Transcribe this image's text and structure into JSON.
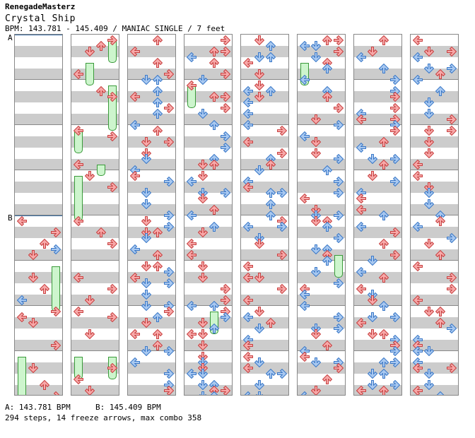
{
  "author": "RenegadeMasterz",
  "song_title": "Crystal Ship",
  "bpm_info": "BPM: 143.781 - 145.409 / MANIAC SINGLE / 7 feet",
  "bpm_markers": {
    "a": "A",
    "b": "B"
  },
  "bpm_legend": {
    "a": "A: 143.781 BPM",
    "b": "B: 145.409 BPM"
  },
  "stats": "294 steps, 14 freeze arrows, max combo 358",
  "colors": {
    "red_note": "#f7a8a8",
    "red_stroke": "#c84040",
    "blue_note": "#a8c8f0",
    "blue_stroke": "#3a78c8",
    "freeze_fill": "#cdf5cd",
    "freeze_stroke": "#3a9a3a",
    "bpm_line": "#3a6ea5"
  },
  "chart_data": {
    "type": "step-chart",
    "mode": "MANIAC SINGLE",
    "difficulty_feet": 7,
    "lanes": [
      "left",
      "down",
      "up",
      "right"
    ],
    "columns": 8,
    "beats_per_column": 16,
    "total_steps": 294,
    "freeze_arrows": 14,
    "max_combo": 358,
    "bpm_changes": [
      {
        "label": "A",
        "bpm": 143.781,
        "column": 1,
        "beat": 0
      },
      {
        "label": "B",
        "bpm": 145.409,
        "column": 1,
        "beat": 8
      }
    ],
    "notes": [
      {
        "col": 1,
        "beat": 8,
        "lane": "left",
        "color": "red"
      },
      {
        "col": 1,
        "beat": 8.5,
        "lane": "right",
        "color": "red"
      },
      {
        "col": 1,
        "beat": 9,
        "lane": "up",
        "color": "red"
      },
      {
        "col": 1,
        "beat": 9.25,
        "lane": "right",
        "color": "blue"
      },
      {
        "col": 1,
        "beat": 9.5,
        "lane": "down",
        "color": "red"
      },
      {
        "col": 1,
        "beat": 10.5,
        "lane": "down",
        "color": "red"
      },
      {
        "col": 1,
        "beat": 11,
        "lane": "up",
        "color": "red"
      },
      {
        "col": 1,
        "beat": 11.5,
        "lane": "left",
        "color": "blue"
      },
      {
        "col": 1,
        "beat": 12,
        "lane": "right",
        "color": "red"
      },
      {
        "col": 1,
        "beat": 12.25,
        "lane": "left",
        "color": "red"
      },
      {
        "col": 1,
        "beat": 12.5,
        "lane": "down",
        "color": "red"
      },
      {
        "col": 1,
        "beat": 13.5,
        "lane": "right",
        "color": "red"
      },
      {
        "col": 1,
        "beat": 14.5,
        "lane": "down",
        "color": "red"
      },
      {
        "col": 1,
        "beat": 15.25,
        "lane": "up",
        "color": "red"
      },
      {
        "col": 1,
        "beat": 15.75,
        "lane": "right",
        "color": "red"
      },
      {
        "col": 2,
        "beat": 0,
        "lane": "right",
        "color": "red"
      },
      {
        "col": 2,
        "beat": 0.25,
        "lane": "up",
        "color": "red"
      },
      {
        "col": 2,
        "beat": 0.5,
        "lane": "down",
        "color": "red"
      },
      {
        "col": 2,
        "beat": 1.5,
        "lane": "left",
        "color": "red"
      },
      {
        "col": 2,
        "beat": 2.25,
        "lane": "up",
        "color": "red"
      },
      {
        "col": 2,
        "beat": 2.5,
        "lane": "right",
        "color": "red"
      },
      {
        "col": 2,
        "beat": 4,
        "lane": "left",
        "color": "red"
      },
      {
        "col": 2,
        "beat": 4.25,
        "lane": "right",
        "color": "red"
      },
      {
        "col": 2,
        "beat": 5.5,
        "lane": "left",
        "color": "red"
      },
      {
        "col": 2,
        "beat": 6,
        "lane": "down",
        "color": "red"
      },
      {
        "col": 2,
        "beat": 6.5,
        "lane": "right",
        "color": "red"
      },
      {
        "col": 2,
        "beat": 8,
        "lane": "left",
        "color": "red"
      },
      {
        "col": 2,
        "beat": 8.5,
        "lane": "up",
        "color": "red"
      },
      {
        "col": 2,
        "beat": 9,
        "lane": "right",
        "color": "red"
      },
      {
        "col": 2,
        "beat": 10.5,
        "lane": "left",
        "color": "red"
      },
      {
        "col": 2,
        "beat": 11,
        "lane": "right",
        "color": "red"
      },
      {
        "col": 2,
        "beat": 11.5,
        "lane": "down",
        "color": "red"
      },
      {
        "col": 2,
        "beat": 12,
        "lane": "left",
        "color": "red"
      },
      {
        "col": 2,
        "beat": 12.25,
        "lane": "right",
        "color": "red"
      },
      {
        "col": 2,
        "beat": 13,
        "lane": "down",
        "color": "red"
      },
      {
        "col": 2,
        "beat": 14.5,
        "lane": "right",
        "color": "red"
      },
      {
        "col": 2,
        "beat": 15,
        "lane": "left",
        "color": "red"
      },
      {
        "col": 2,
        "beat": 15.5,
        "lane": "down",
        "color": "red"
      }
    ],
    "freezes": [
      {
        "col": 2,
        "lane": "right",
        "start_beat": 0,
        "end_beat": 1
      },
      {
        "col": 2,
        "lane": "down",
        "start_beat": 1,
        "end_beat": 2
      },
      {
        "col": 2,
        "lane": "right",
        "start_beat": 2,
        "end_beat": 4
      },
      {
        "col": 2,
        "lane": "left",
        "start_beat": 4,
        "end_beat": 5
      },
      {
        "col": 2,
        "lane": "up",
        "start_beat": 5.5,
        "end_beat": 6
      },
      {
        "col": 2,
        "lane": "left",
        "start_beat": 6,
        "end_beat": 8
      },
      {
        "col": 1,
        "lane": "right",
        "start_beat": 10,
        "end_beat": 12
      },
      {
        "col": 1,
        "lane": "left",
        "start_beat": 14,
        "end_beat": 16
      },
      {
        "col": 2,
        "lane": "left",
        "start_beat": 14,
        "end_beat": 15
      },
      {
        "col": 2,
        "lane": "right",
        "start_beat": 14,
        "end_beat": 15
      },
      {
        "col": 4,
        "lane": "left",
        "start_beat": 2,
        "end_beat": 3
      },
      {
        "col": 4,
        "lane": "up",
        "start_beat": 12,
        "end_beat": 13
      },
      {
        "col": 6,
        "lane": "left",
        "start_beat": 1,
        "end_beat": 2
      },
      {
        "col": 6,
        "lane": "right",
        "start_beat": 9.5,
        "end_beat": 10.5
      }
    ]
  }
}
